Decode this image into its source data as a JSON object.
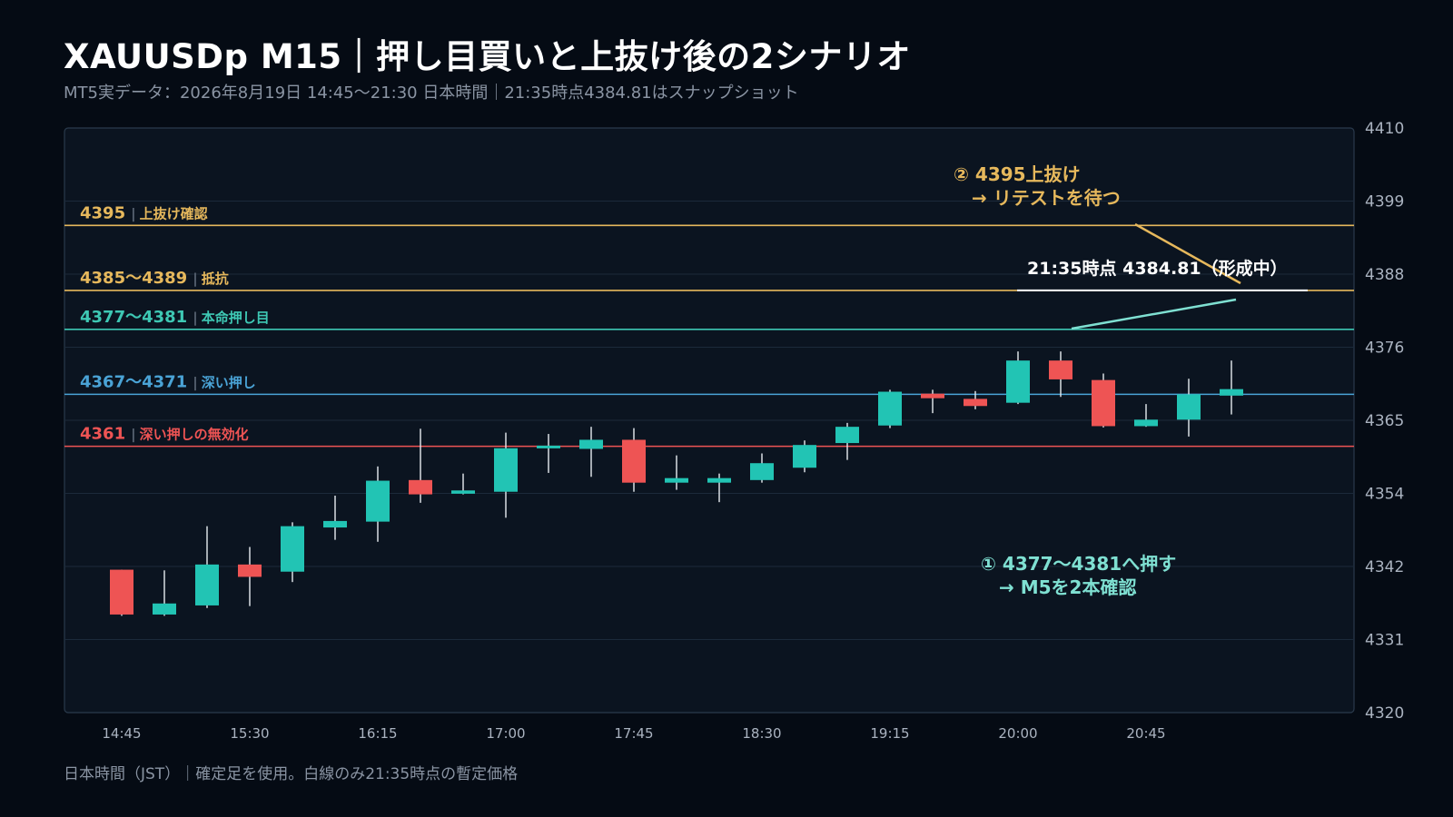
{
  "header": {
    "title": "XAUUSDp M15｜押し目買いと上抜け後の2シナリオ",
    "subtitle": "MT5実データ：2026年8月19日 14:45〜21:30 日本時間｜21:35時点4384.81はスナップショット"
  },
  "footer": {
    "note": "日本時間（JST）｜確定足を使用。白線のみ21:35時点の暫定価格"
  },
  "colors": {
    "background": "#050b14",
    "plot_bg": "#0b1420",
    "bull": "#22c4b4",
    "bear": "#ee5454",
    "gold": "#e6b85c",
    "teal": "#3ec8b4",
    "blue": "#4aa3d6",
    "red": "#ee5454",
    "white": "#ffffff"
  },
  "chart_data": {
    "type": "candlestick",
    "ylim": [
      4320,
      4410
    ],
    "y_ticks": [
      "4410",
      "4399",
      "4388",
      "4376",
      "4365",
      "4354",
      "4342",
      "4331",
      "4320"
    ],
    "y_tick_values": [
      4410,
      4398.75,
      4387.5,
      4376.25,
      4365,
      4353.75,
      4342.5,
      4331.25,
      4320
    ],
    "x_ticks": [
      "14:45",
      "15:30",
      "16:15",
      "17:00",
      "17:45",
      "18:30",
      "19:15",
      "20:00",
      "20:45"
    ],
    "candles": [
      {
        "o": 4342.0,
        "h": 4342.0,
        "l": 4334.9,
        "c": 4335.1
      },
      {
        "o": 4335.1,
        "h": 4341.9,
        "l": 4334.9,
        "c": 4336.8
      },
      {
        "o": 4336.5,
        "h": 4348.7,
        "l": 4336.1,
        "c": 4342.8
      },
      {
        "o": 4342.8,
        "h": 4345.5,
        "l": 4336.4,
        "c": 4340.9
      },
      {
        "o": 4341.7,
        "h": 4349.3,
        "l": 4340.1,
        "c": 4348.7
      },
      {
        "o": 4348.5,
        "h": 4353.4,
        "l": 4346.6,
        "c": 4349.5
      },
      {
        "o": 4349.4,
        "h": 4357.9,
        "l": 4346.3,
        "c": 4355.7
      },
      {
        "o": 4355.8,
        "h": 4363.7,
        "l": 4352.3,
        "c": 4353.6
      },
      {
        "o": 4353.7,
        "h": 4356.8,
        "l": 4353.6,
        "c": 4354.2
      },
      {
        "o": 4354.0,
        "h": 4363.1,
        "l": 4350.0,
        "c": 4360.7
      },
      {
        "o": 4360.7,
        "h": 4362.9,
        "l": 4356.9,
        "c": 4361.1
      },
      {
        "o": 4360.6,
        "h": 4364.0,
        "l": 4356.3,
        "c": 4362.0
      },
      {
        "o": 4362.0,
        "h": 4363.8,
        "l": 4354.0,
        "c": 4355.4
      },
      {
        "o": 4355.4,
        "h": 4359.6,
        "l": 4354.3,
        "c": 4356.1
      },
      {
        "o": 4355.4,
        "h": 4356.8,
        "l": 4352.4,
        "c": 4356.1
      },
      {
        "o": 4355.8,
        "h": 4359.9,
        "l": 4355.4,
        "c": 4358.4
      },
      {
        "o": 4357.7,
        "h": 4361.9,
        "l": 4357.0,
        "c": 4361.2
      },
      {
        "o": 4361.5,
        "h": 4364.6,
        "l": 4358.9,
        "c": 4364.0
      },
      {
        "o": 4364.2,
        "h": 4369.7,
        "l": 4363.8,
        "c": 4369.4
      },
      {
        "o": 4369.1,
        "h": 4369.7,
        "l": 4366.1,
        "c": 4368.4
      },
      {
        "o": 4368.3,
        "h": 4369.5,
        "l": 4366.7,
        "c": 4367.2
      },
      {
        "o": 4367.7,
        "h": 4375.6,
        "l": 4367.5,
        "c": 4374.2
      },
      {
        "o": 4374.2,
        "h": 4375.6,
        "l": 4368.6,
        "c": 4371.3
      },
      {
        "o": 4371.2,
        "h": 4372.2,
        "l": 4363.9,
        "c": 4364.1
      },
      {
        "o": 4364.1,
        "h": 4367.5,
        "l": 4364.0,
        "c": 4365.1
      },
      {
        "o": 4365.1,
        "h": 4371.4,
        "l": 4362.5,
        "c": 4369.0
      },
      {
        "o": 4368.8,
        "h": 4374.2,
        "l": 4365.9,
        "c": 4369.8
      }
    ],
    "levels": [
      {
        "value": 4395,
        "price": "4395",
        "note": "上抜け確認",
        "color": "#e6b85c"
      },
      {
        "value": 4385,
        "price": "4385〜4389",
        "note": "抵抗",
        "color": "#e6b85c"
      },
      {
        "value": 4379,
        "price": "4377〜4381",
        "note": "本命押し目",
        "color": "#3ec8b4"
      },
      {
        "value": 4369,
        "price": "4367〜4371",
        "note": "深い押し",
        "color": "#4aa3d6"
      },
      {
        "value": 4361,
        "price": "4361",
        "note": "深い押しの無効化",
        "color": "#ee5454"
      }
    ],
    "snapshot": {
      "value": 4385,
      "label": "21:35時点 4384.81（形成中）"
    },
    "annotations": {
      "scenario2_line1": "② 4395上抜け",
      "scenario2_line2": "→ リテストを待つ",
      "scenario1_line1": "① 4377〜4381へ押す",
      "scenario1_line2": "→ M5を2本確認"
    }
  }
}
